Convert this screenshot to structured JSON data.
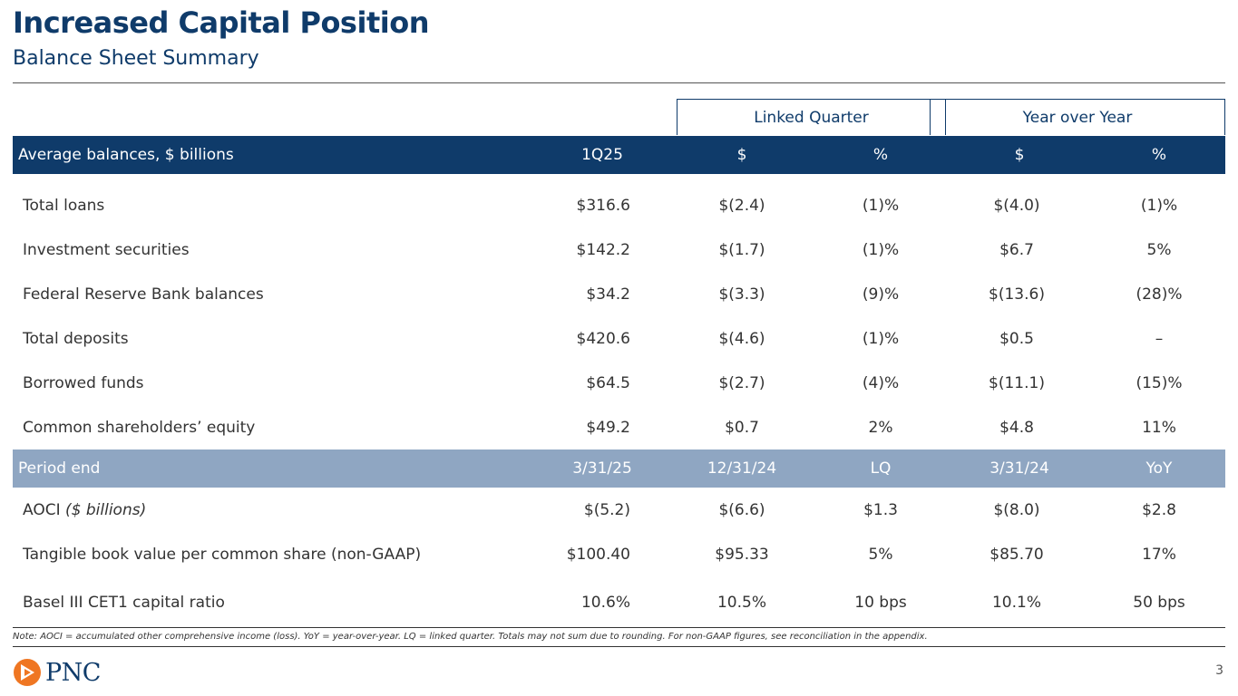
{
  "header": {
    "title": "Increased Capital Position",
    "subtitle": "Balance Sheet Summary"
  },
  "groups": {
    "linked_quarter": "Linked Quarter",
    "year_over_year": "Year over Year"
  },
  "average_header": [
    "Average balances, $ billions",
    "1Q25",
    "$",
    "%",
    "$",
    "%"
  ],
  "average_rows": [
    [
      "Total loans",
      "$316.6",
      "$(2.4)",
      "(1)%",
      "$(4.0)",
      "(1)%"
    ],
    [
      "Investment securities",
      "$142.2",
      "$(1.7)",
      "(1)%",
      "$6.7",
      "5%"
    ],
    [
      "Federal Reserve Bank balances",
      "$34.2",
      "$(3.3)",
      "(9)%",
      "$(13.6)",
      "(28)%"
    ],
    [
      "Total deposits",
      "$420.6",
      "$(4.6)",
      "(1)%",
      "$0.5",
      "–"
    ],
    [
      "Borrowed funds",
      "$64.5",
      "$(2.7)",
      "(4)%",
      "$(11.1)",
      "(15)%"
    ],
    [
      "Common shareholders’ equity",
      "$49.2",
      "$0.7",
      "2%",
      "$4.8",
      "11%"
    ]
  ],
  "period_header": [
    "Period end",
    "3/31/25",
    "12/31/24",
    "LQ",
    "3/31/24",
    "YoY"
  ],
  "period_rows": [
    {
      "label": "AOCI",
      "label_italic": "($ billions)",
      "values": [
        "$(5.2)",
        "$(6.6)",
        "$1.3",
        "$(8.0)",
        "$2.8"
      ]
    },
    {
      "label": "Tangible book value per common share (non-GAAP)",
      "label_italic": "",
      "values": [
        "$100.40",
        "$95.33",
        "5%",
        "$85.70",
        "17%"
      ]
    },
    {
      "label": "Basel III CET1 capital ratio",
      "label_italic": "",
      "values": [
        "10.6%",
        "10.5%",
        "10 bps",
        "10.1%",
        "50 bps"
      ]
    }
  ],
  "note": "Note: AOCI = accumulated other comprehensive income  (loss). YoY = year-over-year. LQ = linked quarter. Totals may not sum due to rounding. For non-GAAP figures, see reconciliation in the appendix.",
  "footer": {
    "logo_text": "PNC",
    "page_number": "3"
  },
  "colors": {
    "navy": "#0f3b6a",
    "band_light": "#8fa6c2",
    "logo_orange": "#ef7622"
  }
}
